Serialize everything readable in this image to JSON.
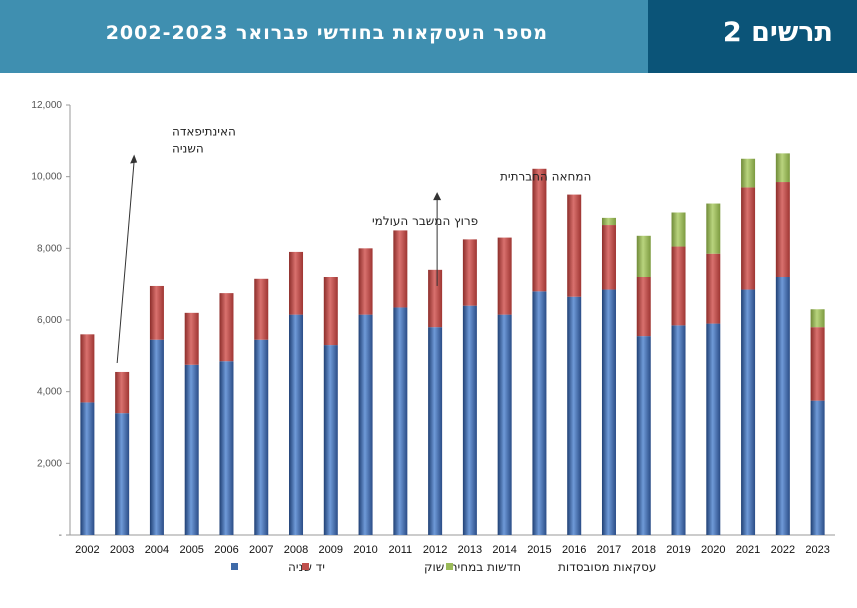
{
  "header": {
    "title": "מספר העסקאות בחודשי פברואר 2002-2023",
    "figure_label": "תרשים 2"
  },
  "colors": {
    "banner_main": "#3f8fb0",
    "banner_side": "#0b5478",
    "series_1": "#3f6aa8",
    "series_2": "#c0504d",
    "series_3": "#9bbb59"
  },
  "chart_data": {
    "type": "bar",
    "stacked": true,
    "categories": [
      "2002",
      "2003",
      "2004",
      "2005",
      "2006",
      "2007",
      "2008",
      "2009",
      "2010",
      "2011",
      "2012",
      "2013",
      "2014",
      "2015",
      "2016",
      "2017",
      "2018",
      "2019",
      "2020",
      "2021",
      "2022",
      "2023"
    ],
    "series": [
      {
        "name": "יד שניה",
        "values": [
          3700,
          3400,
          5450,
          4750,
          4850,
          5450,
          6150,
          5300,
          6150,
          6350,
          5800,
          6400,
          6150,
          6800,
          6650,
          6850,
          5550,
          5850,
          5900,
          6850,
          7200,
          3750
        ]
      },
      {
        "name": "חדשות במחירי שוק",
        "values": [
          1900,
          1150,
          1500,
          1450,
          1900,
          1700,
          1750,
          1900,
          1850,
          2150,
          1600,
          1850,
          2150,
          3420,
          2850,
          1800,
          1650,
          2200,
          1950,
          2850,
          2650,
          2050
        ]
      },
      {
        "name": "עסקאות מסובסדות",
        "values": [
          0,
          0,
          0,
          0,
          0,
          0,
          0,
          0,
          0,
          0,
          0,
          0,
          0,
          0,
          0,
          200,
          1150,
          950,
          1400,
          800,
          800,
          500
        ]
      }
    ],
    "ylim": [
      0,
      12000
    ],
    "yticks": [
      "-",
      "2,000",
      "4,000",
      "6,000",
      "8,000",
      "10,000",
      "12,000"
    ],
    "legend_position": "bottom",
    "annotations": [
      {
        "text_lines": [
          "האינתיפאדה",
          "השניה"
        ],
        "category": "2003"
      },
      {
        "text_lines": [
          "פרוץ המשבר העולמי"
        ],
        "category": "2008"
      },
      {
        "text_lines": [
          "המחאה החברתית"
        ],
        "category": "2012"
      }
    ]
  }
}
